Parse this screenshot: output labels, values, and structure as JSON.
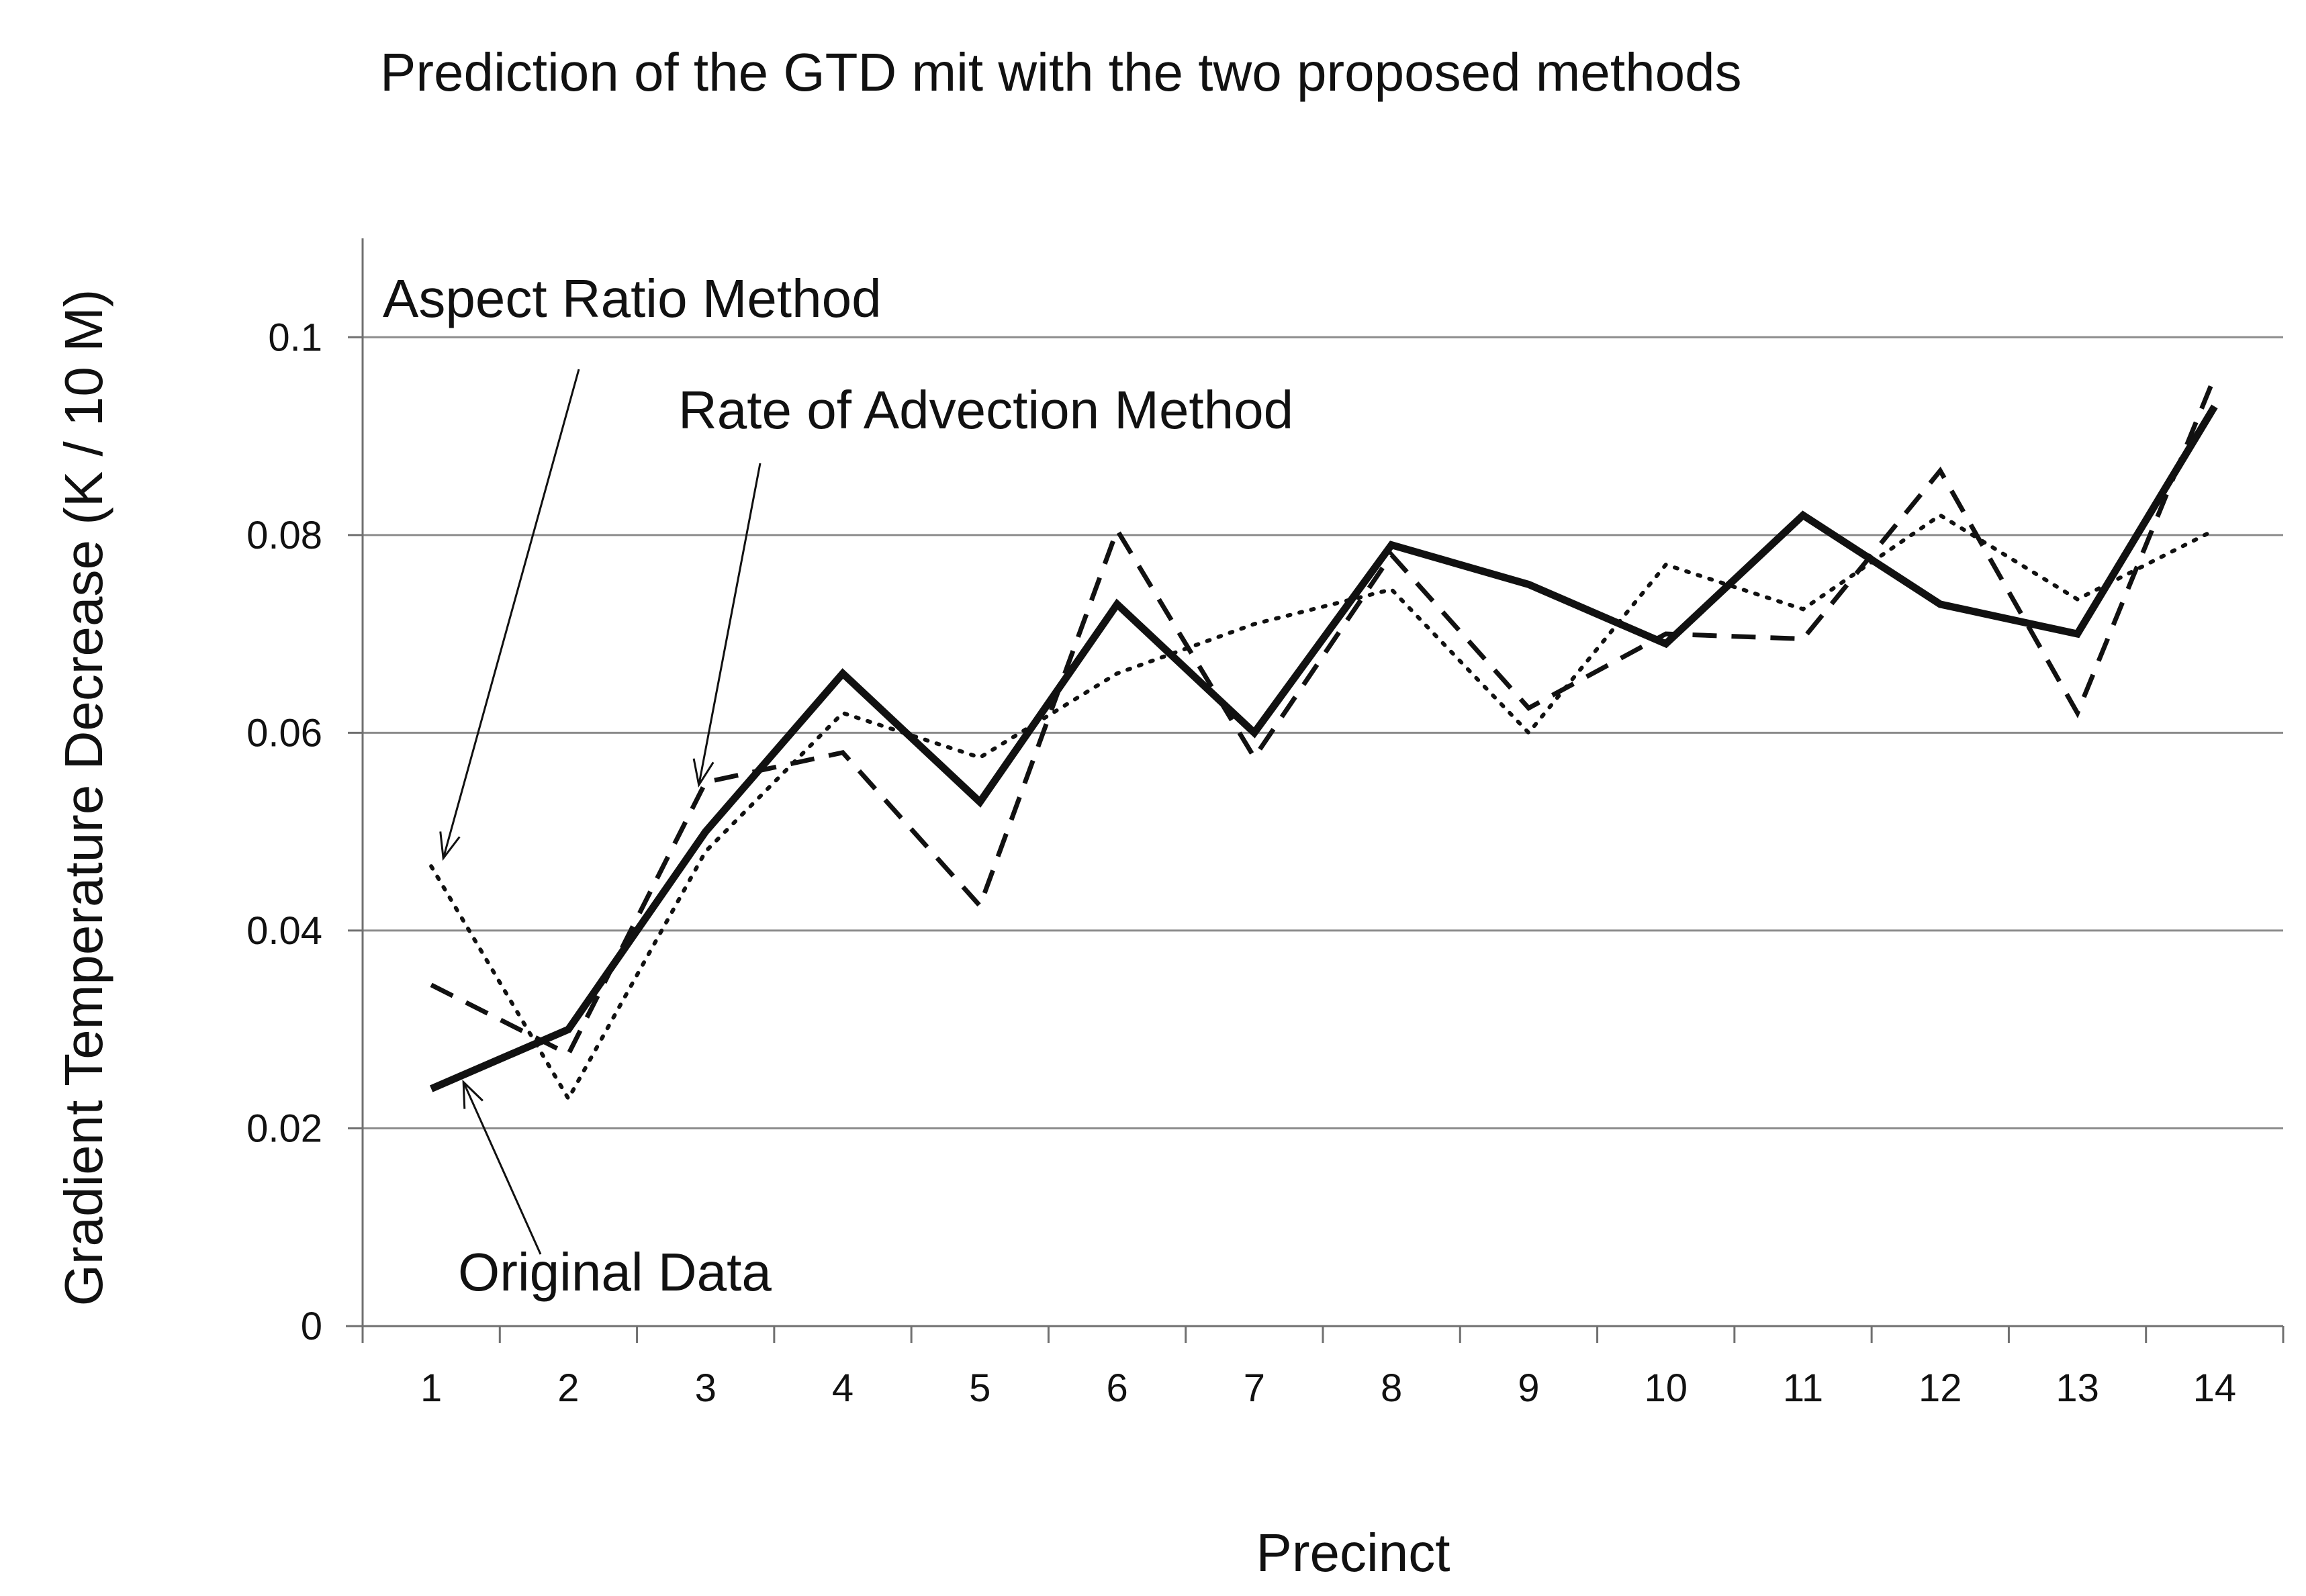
{
  "chart_data": {
    "type": "line",
    "title": "Prediction of the GTD mit with the two proposed methods",
    "xlabel": "Precinct",
    "ylabel": "Gradient Temperature Decrease  (K / 10 M)",
    "categories": [
      "1",
      "2",
      "3",
      "4",
      "5",
      "6",
      "7",
      "8",
      "9",
      "10",
      "11",
      "12",
      "13",
      "14"
    ],
    "ylim": [
      0,
      0.11
    ],
    "yticks": [
      0,
      0.02,
      0.04,
      0.06,
      0.08,
      0.1
    ],
    "ytick_labels": [
      "0",
      "0.02",
      "0.04",
      "0.06",
      "0.08",
      "0.1"
    ],
    "grid": "horizontal",
    "series": [
      {
        "name": "Original Data",
        "style": "solid",
        "values": [
          0.024,
          0.03,
          0.05,
          0.066,
          0.053,
          0.073,
          0.06,
          0.079,
          0.075,
          0.069,
          0.082,
          0.073,
          0.07,
          0.093
        ]
      },
      {
        "name": "Rate of Advection Method",
        "style": "dashed",
        "values": [
          0.0345,
          0.0275,
          0.055,
          0.058,
          0.0425,
          0.0805,
          0.0575,
          0.078,
          0.0625,
          0.07,
          0.0695,
          0.0865,
          0.062,
          0.096
        ]
      },
      {
        "name": "Aspect Ratio Method",
        "style": "dotted",
        "values": [
          0.0465,
          0.023,
          0.048,
          0.062,
          0.0575,
          0.066,
          0.071,
          0.0745,
          0.06,
          0.077,
          0.0725,
          0.082,
          0.0735,
          0.0805
        ]
      }
    ],
    "annotations": [
      {
        "name": "aspect-ratio-method",
        "text": "Aspect Ratio Method",
        "points_to_series": "Aspect Ratio Method",
        "points_to_precinct": 1
      },
      {
        "name": "rate-of-advection-method",
        "text": "Rate of Advection Method",
        "points_to_series": "Rate of Advection Method",
        "points_to_precinct": 3
      },
      {
        "name": "original-data",
        "text": "Original Data",
        "points_to_series": "Original Data",
        "points_to_precinct": 1
      }
    ],
    "colors": {
      "lines": "#111111",
      "grid": "#8c8c8c",
      "axis": "#707070",
      "text": "#111111"
    }
  }
}
